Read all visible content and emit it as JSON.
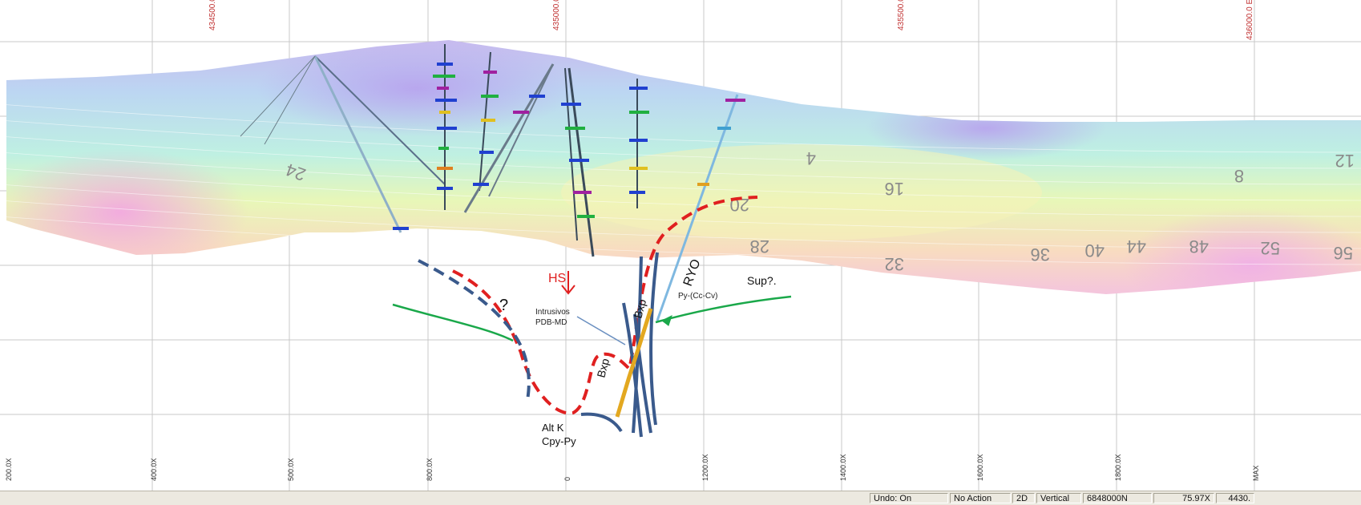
{
  "map": {
    "top_coordinate_labels": [
      "434500.0 E",
      "435000.0 E",
      "435500.0 E",
      "436000.0 E"
    ],
    "bottom_axis_labels": [
      "200.0X",
      "400.0X",
      "500.0X",
      "800.0X",
      "0",
      "1200.0X",
      "1400.0X",
      "1600.0X",
      "1800.0X",
      "MAX"
    ],
    "contour_labels": [
      "4",
      "8",
      "12",
      "16",
      "20",
      "24",
      "28",
      "32",
      "36",
      "40",
      "44",
      "48",
      "52",
      "56"
    ],
    "annotations": {
      "hs": "HS",
      "question_mark": "?",
      "intrusivos": "Intrusivos",
      "pdb_md": "PDB-MD",
      "bxp_1": "Bxp",
      "bxp_2": "Bxp",
      "ryo": "RYO",
      "sup": "Sup?.",
      "py_cc_cv": "Py-(Cc-Cv)",
      "alt_k": "Alt K",
      "cpy_py": "Cpy-Py"
    },
    "colors": {
      "interpretation_red": "#e02020",
      "structure_blue": "#3a5a8c",
      "contact_green": "#1aa84a",
      "grid": "#c9c9c9",
      "coordinate_label": "#c03030"
    }
  },
  "statusbar": {
    "undo": "Undo: On",
    "action": "No Action",
    "view_mode": "2D",
    "orientation": "Vertical",
    "section_northing": "6848000N",
    "zoom": "75.97X",
    "elevation": "4430."
  }
}
